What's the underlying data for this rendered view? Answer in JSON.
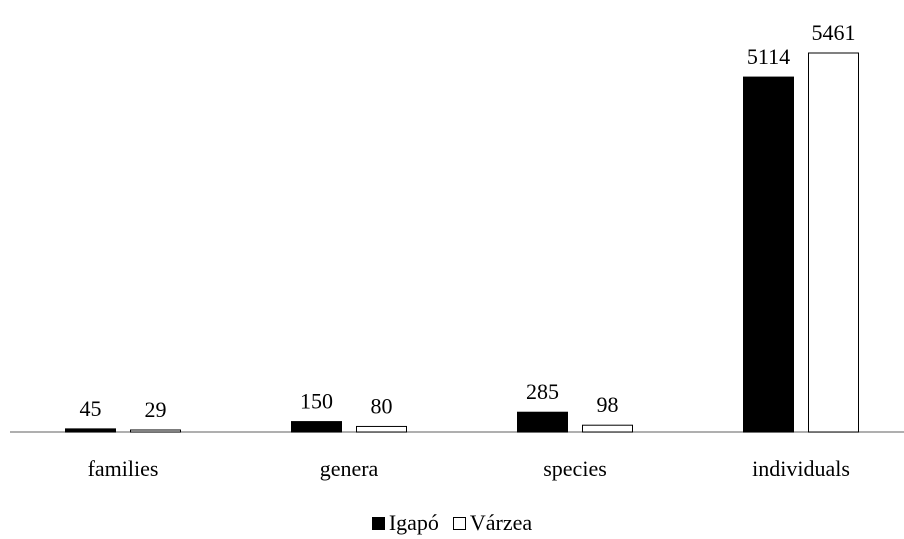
{
  "chart_data": {
    "type": "bar",
    "categories": [
      "families",
      "genera",
      "species",
      "individuals"
    ],
    "series": [
      {
        "name": "Igapó",
        "values": [
          45,
          150,
          285,
          5114
        ],
        "color": "#000000"
      },
      {
        "name": "Várzea",
        "values": [
          29,
          80,
          98,
          5461
        ],
        "color": "#ffffff"
      }
    ],
    "title": "",
    "xlabel": "",
    "ylabel": "",
    "ylim": [
      0,
      5461
    ],
    "grid": false,
    "legend_position": "bottom-center"
  }
}
